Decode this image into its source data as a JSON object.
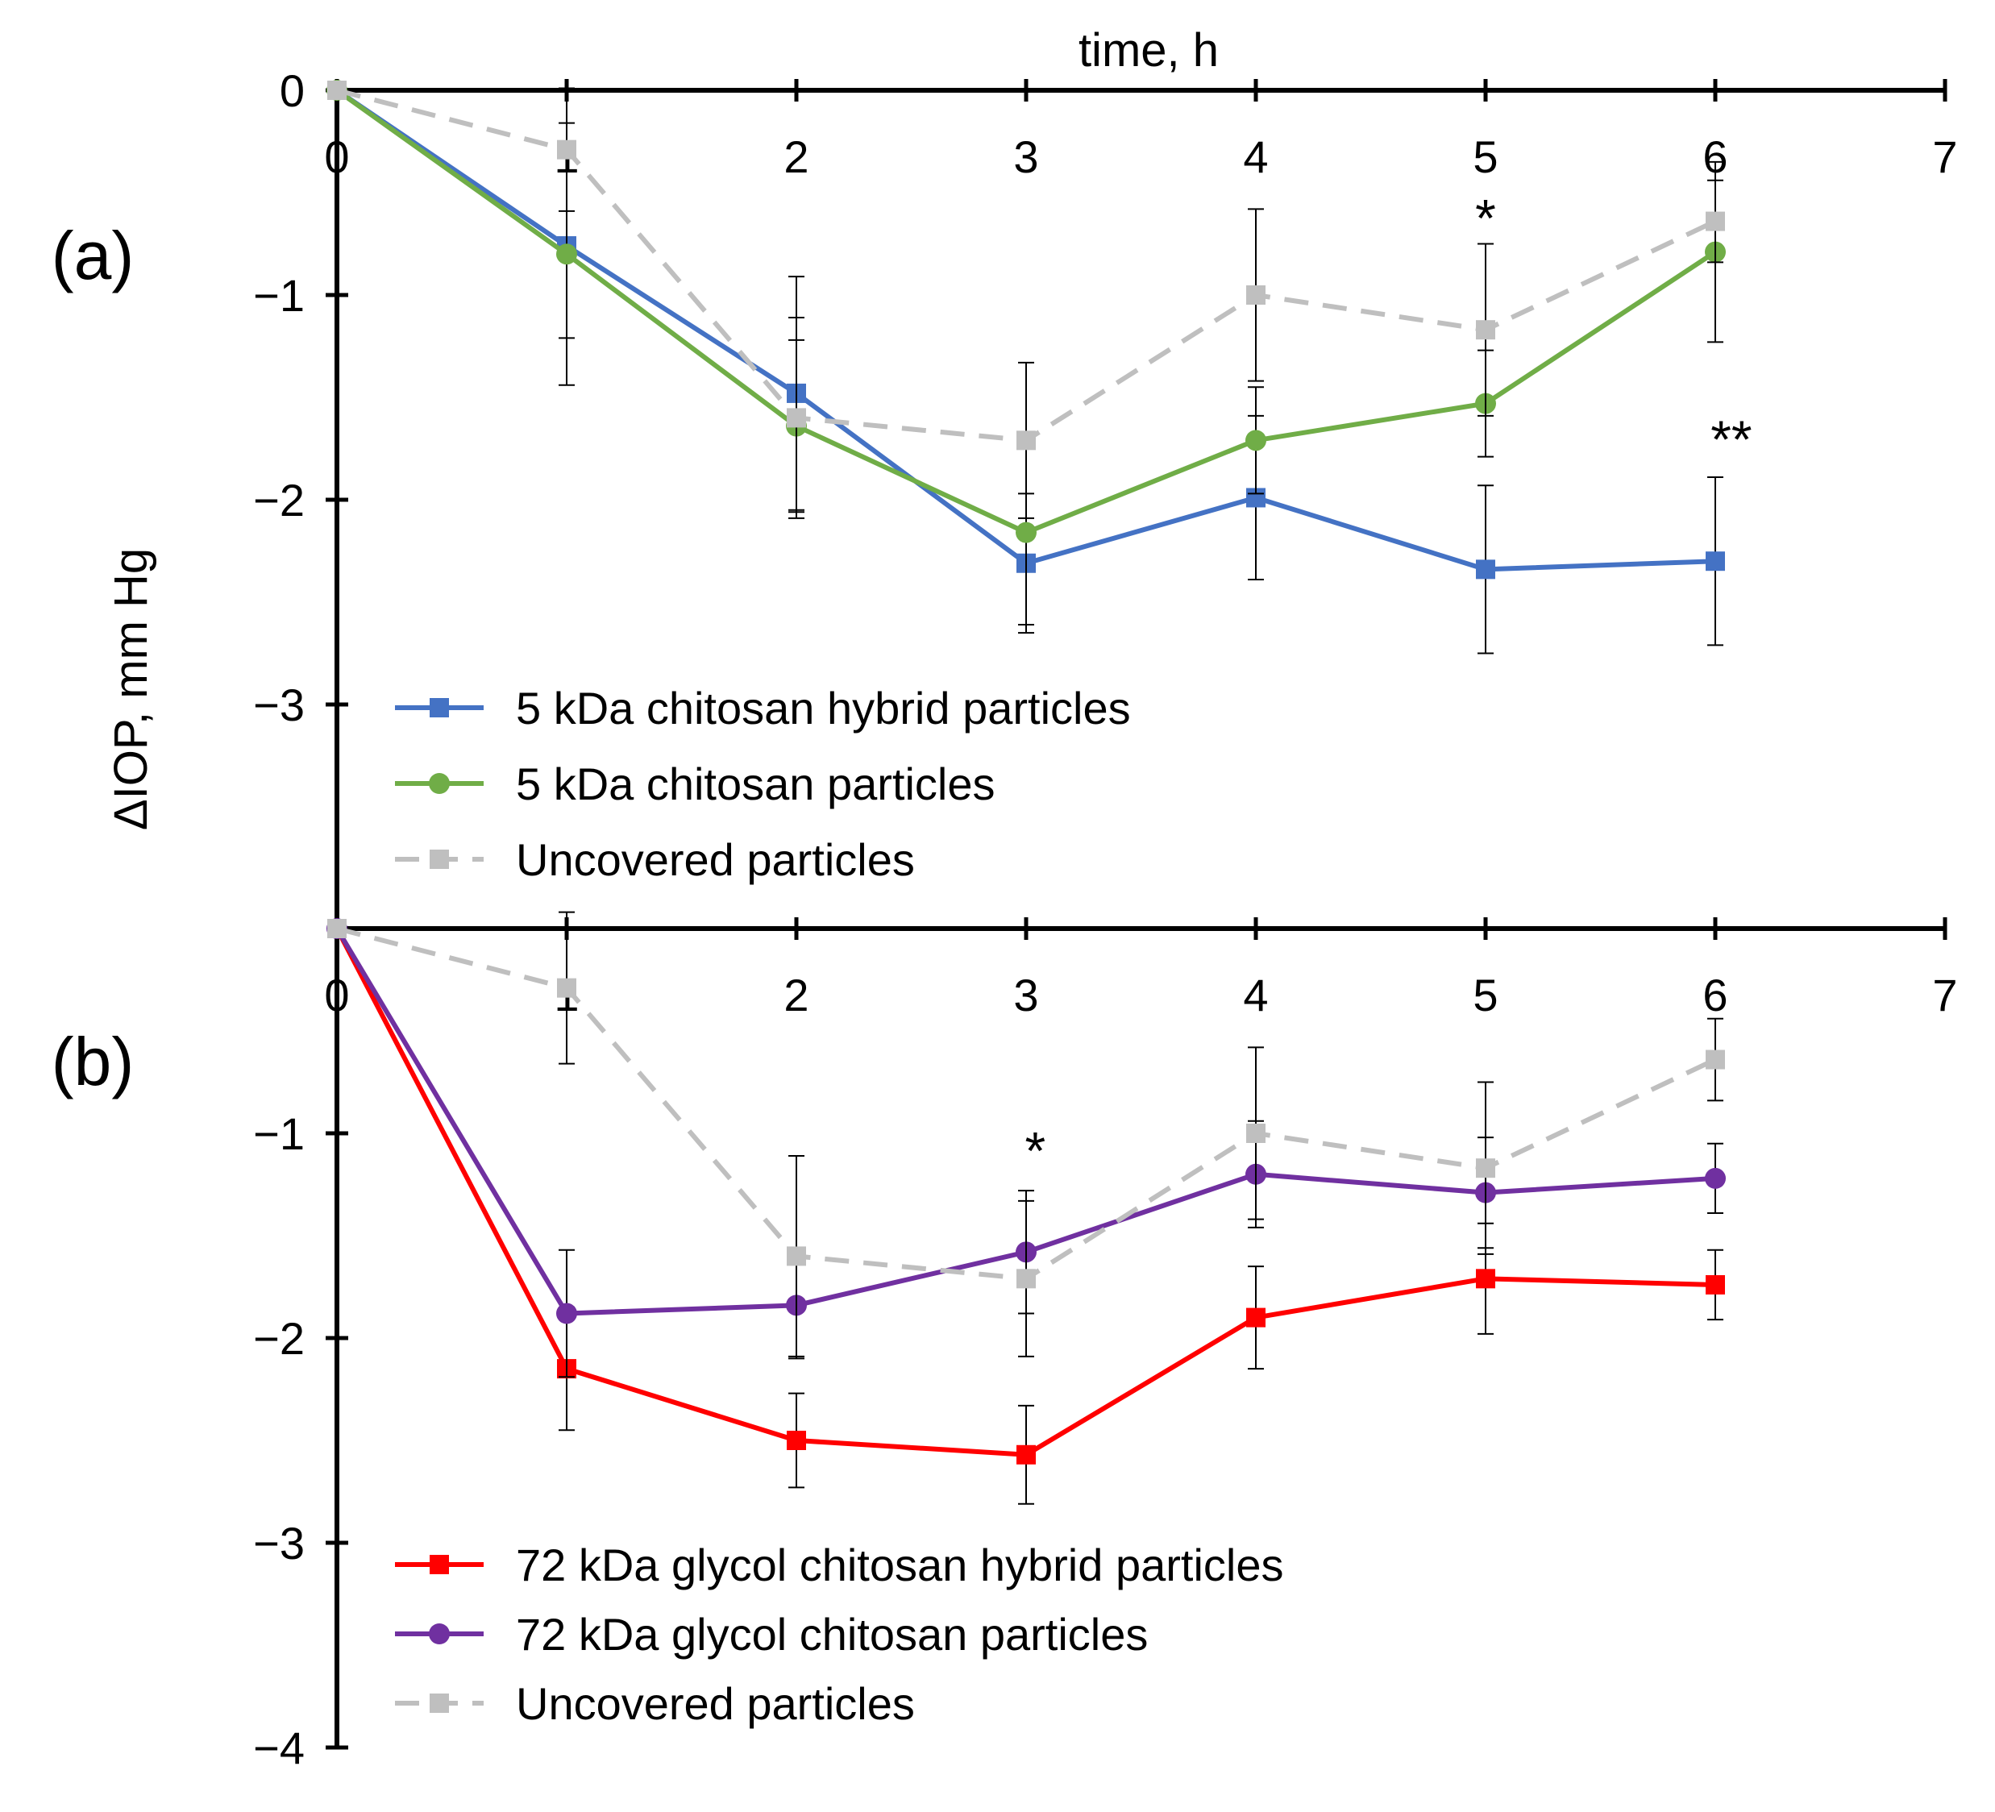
{
  "chart_data": [
    {
      "type": "line",
      "panel_label": "(a)",
      "xlabel": "time, h",
      "ylabel": "ΔIOP, mm Hg",
      "xlim": [
        0,
        7
      ],
      "ylim": [
        -4,
        0
      ],
      "x_ticks": [
        "0",
        "1",
        "2",
        "3",
        "4",
        "5",
        "6",
        "7"
      ],
      "y_ticks": [
        "0",
        "−1",
        "−2",
        "−3"
      ],
      "x": [
        0,
        1,
        2,
        3,
        4,
        5,
        6
      ],
      "series": [
        {
          "name": "5 kDa chitosan hybrid particles",
          "color": "#4472C4",
          "marker": "square",
          "dash": "solid",
          "values": [
            0,
            -0.76,
            -1.48,
            -2.31,
            -1.99,
            -2.34,
            -2.3
          ],
          "errors": [
            0,
            0.45,
            0.57,
            0.34,
            0.4,
            0.41,
            0.41
          ]
        },
        {
          "name": "5 kDa chitosan particles",
          "color": "#70AD47",
          "marker": "circle",
          "dash": "solid",
          "values": [
            0,
            -0.8,
            -1.64,
            -2.16,
            -1.71,
            -1.53,
            -0.79
          ],
          "errors": [
            0,
            0.64,
            0.42,
            0.45,
            0.26,
            0.26,
            0.44
          ]
        },
        {
          "name": "Uncovered particles",
          "color": "#BFBFBF",
          "marker": "square",
          "dash": "dashed",
          "values": [
            0,
            -0.29,
            -1.6,
            -1.71,
            -1.0,
            -1.17,
            -0.64
          ],
          "errors": [
            0,
            0.3,
            0.49,
            0.38,
            0.42,
            0.42,
            0.2
          ]
        }
      ],
      "annotations": [
        {
          "text": "*",
          "x": 5,
          "y": -0.62
        },
        {
          "text": "**",
          "x": 6.07,
          "y": -1.7
        }
      ],
      "legend_position": "bottom-left"
    },
    {
      "type": "line",
      "panel_label": "(b)",
      "xlabel": "",
      "ylabel": "",
      "xlim": [
        0,
        7
      ],
      "ylim": [
        -4,
        0
      ],
      "x_ticks": [
        "0",
        "1",
        "2",
        "3",
        "4",
        "5",
        "6",
        "7"
      ],
      "y_ticks": [
        "−1",
        "−2",
        "−3",
        "−4"
      ],
      "x": [
        0,
        1,
        2,
        3,
        4,
        5,
        6
      ],
      "series": [
        {
          "name": "72 kDa glycol chitosan hybrid particles",
          "color": "#FF0000",
          "marker": "square",
          "dash": "solid",
          "values": [
            0,
            -2.15,
            -2.5,
            -2.57,
            -1.9,
            -1.71,
            -1.74
          ],
          "errors": [
            0,
            0.3,
            0.23,
            0.24,
            0.25,
            0.27,
            0.17
          ]
        },
        {
          "name": "72 kDa glycol chitosan particles",
          "color": "#7030A0",
          "marker": "circle",
          "dash": "solid",
          "values": [
            0,
            -1.88,
            -1.84,
            -1.58,
            -1.2,
            -1.29,
            -1.22
          ],
          "errors": [
            0,
            0.31,
            0.26,
            0.3,
            0.26,
            0.27,
            0.17
          ]
        },
        {
          "name": "Uncovered particles",
          "color": "#BFBFBF",
          "marker": "square",
          "dash": "dashed",
          "values": [
            0,
            -0.29,
            -1.6,
            -1.71,
            -1.0,
            -1.17,
            -0.64
          ],
          "errors": [
            0,
            0.37,
            0.49,
            0.38,
            0.42,
            0.42,
            0.2
          ]
        }
      ],
      "annotations": [
        {
          "text": "*",
          "x": 3.04,
          "y": -1.08
        }
      ],
      "legend_position": "bottom-left"
    }
  ]
}
